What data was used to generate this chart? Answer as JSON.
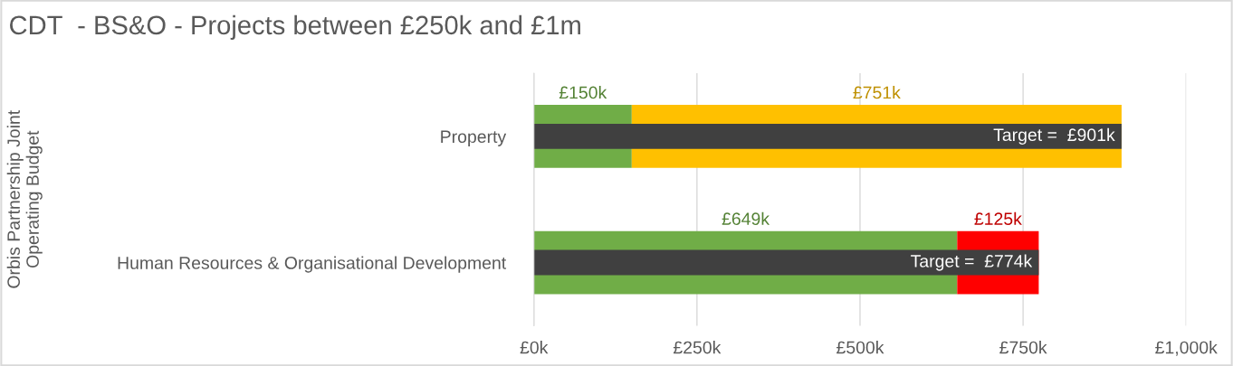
{
  "chart_data": {
    "type": "bar",
    "orientation": "horizontal",
    "title": "CDT  - BS&O - Projects between £250k and £1m",
    "ylabel": "Orbis Partnership Joint\nOperating Budget",
    "categories": [
      "Property",
      "Human Resources & Organisational Development"
    ],
    "series": [
      {
        "color": "#70ad47",
        "values": [
          150,
          649
        ],
        "base": [
          0,
          0
        ],
        "value_labels": [
          "£150k",
          "£649k"
        ]
      },
      {
        "colors": [
          "#ffc000",
          "#ff0000"
        ],
        "values": [
          751,
          125
        ],
        "base": [
          150,
          649
        ],
        "value_labels": [
          "£751k",
          "£125k"
        ]
      },
      {
        "color": "#404040",
        "values": [
          901,
          774
        ],
        "base": [
          0,
          0
        ],
        "value_labels": [
          "Target =  £901k",
          "Target =  £774k"
        ]
      }
    ],
    "xlim": [
      0,
      1000
    ],
    "xticks": [
      {
        "value": 0,
        "label": "£0k"
      },
      {
        "value": 250,
        "label": "£250k"
      },
      {
        "value": 500,
        "label": "£500k"
      },
      {
        "value": 750,
        "label": "£750k"
      },
      {
        "value": 1000,
        "label": "£1,000k"
      }
    ],
    "grid": "x",
    "legend": false
  }
}
